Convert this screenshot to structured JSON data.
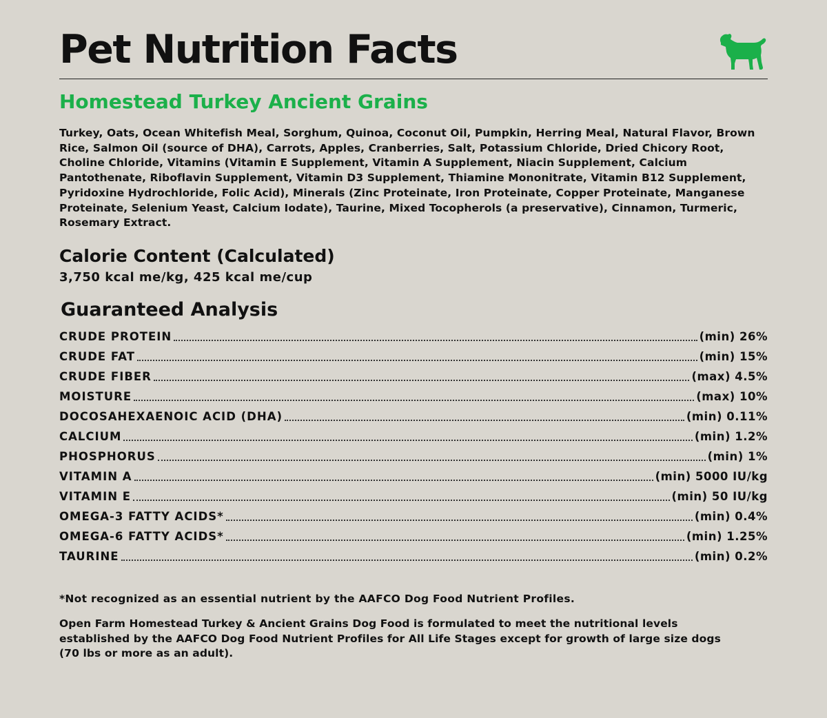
{
  "header": {
    "title": "Pet Nutrition Facts",
    "icon": "dog-icon",
    "accent_color": "#1bb04a"
  },
  "product": {
    "name": "Homestead Turkey Ancient Grains",
    "ingredients": "Turkey, Oats, Ocean Whitefish Meal, Sorghum, Quinoa, Coconut Oil, Pumpkin, Herring Meal, Natural Flavor, Brown Rice, Salmon Oil (source of DHA), Carrots, Apples, Cranberries, Salt, Potassium Chloride, Dried Chicory Root, Choline Chloride, Vitamins (Vitamin E Supplement, Vitamin A Supplement, Niacin Supplement, Calcium Pantothenate, Riboflavin Supplement, Vitamin D3 Supplement, Thiamine Mononitrate, Vitamin B12 Supplement, Pyridoxine Hydrochloride, Folic Acid), Minerals (Zinc Proteinate, Iron Proteinate, Copper Proteinate, Manganese Proteinate, Selenium Yeast, Calcium Iodate), Taurine, Mixed Tocopherols (a preservative), Cinnamon, Turmeric, Rosemary Extract."
  },
  "calorie": {
    "heading": "Calorie Content (Calculated)",
    "value": "3,750 kcal me/kg, 425 kcal me/cup"
  },
  "analysis": {
    "heading": "Guaranteed Analysis",
    "rows": [
      {
        "name": "CRUDE PROTEIN",
        "value": "(min) 26%"
      },
      {
        "name": "CRUDE FAT",
        "value": "(min) 15%"
      },
      {
        "name": "CRUDE FIBER",
        "value": "(max) 4.5%"
      },
      {
        "name": "MOISTURE",
        "value": "(max) 10%"
      },
      {
        "name": "DOCOSAHEXAENOIC ACID (DHA)",
        "value": "(min) 0.11%"
      },
      {
        "name": "CALCIUM",
        "value": "(min) 1.2%"
      },
      {
        "name": "PHOSPHORUS",
        "value": "(min) 1%"
      },
      {
        "name": "VITAMIN A",
        "value": "(min) 5000 IU/kg"
      },
      {
        "name": "VITAMIN E",
        "value": "(min) 50 IU/kg"
      },
      {
        "name": "OMEGA-3 FATTY ACIDS*",
        "value": "(min) 0.4%"
      },
      {
        "name": "OMEGA-6 FATTY ACIDS*",
        "value": "(min) 1.25%"
      },
      {
        "name": "TAURINE",
        "value": "(min) 0.2%"
      }
    ]
  },
  "footnote": "*Not recognized as an essential nutrient by the AAFCO Dog Food Nutrient Profiles.",
  "statement": "Open Farm Homestead Turkey & Ancient Grains Dog Food is formulated to meet the nutritional levels established by the AAFCO Dog Food Nutrient Profiles for All Life Stages except for growth of large size dogs (70 lbs or more as an adult)."
}
